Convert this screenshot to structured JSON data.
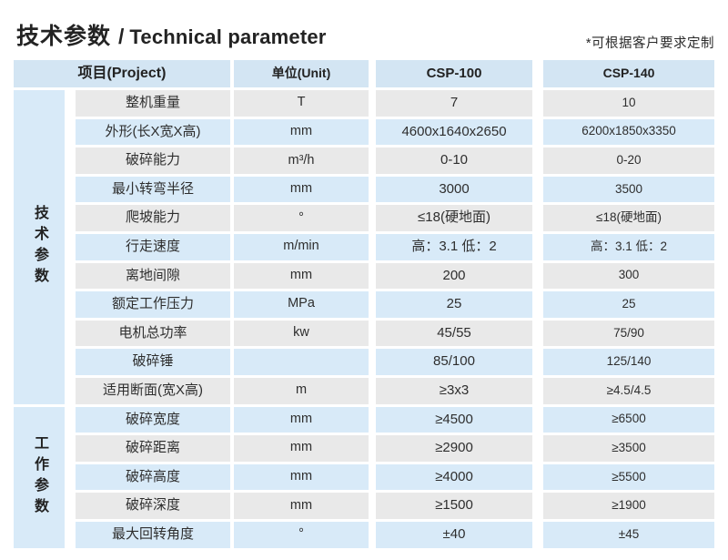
{
  "header": {
    "title_zh": "技术参数",
    "title_sep": "/",
    "title_en": "Technical parameter",
    "note": "*可根据客户要求定制"
  },
  "colors": {
    "header_blue": "#d3e5f3",
    "row_blue": "#d8eaf8",
    "row_gray": "#e9e9e9"
  },
  "table": {
    "headers": {
      "project": "项目(Project)",
      "unit": "单位(Unit)",
      "model1": "CSP-100",
      "model2": "CSP-140"
    },
    "sections": [
      {
        "label": "技术参数"
      },
      {
        "label": "工作参数"
      }
    ],
    "rows": [
      {
        "project": "整机重量",
        "unit": "T",
        "csp100": "7",
        "csp140": "10"
      },
      {
        "project": "外形(长X宽X高)",
        "unit": "mm",
        "csp100": "4600x1640x2650",
        "csp140": "6200x1850x3350"
      },
      {
        "project": "破碎能力",
        "unit": "m³/h",
        "csp100": "0-10",
        "csp140": "0-20"
      },
      {
        "project": "最小转弯半径",
        "unit": "mm",
        "csp100": "3000",
        "csp140": "3500"
      },
      {
        "project": "爬坡能力",
        "unit": "°",
        "csp100": "≤18(硬地面)",
        "csp140": "≤18(硬地面)"
      },
      {
        "project": "行走速度",
        "unit": "m/min",
        "csp100": "高：3.1 低：2",
        "csp140": "高：3.1 低：2"
      },
      {
        "project": "离地间隙",
        "unit": "mm",
        "csp100": "200",
        "csp140": "300"
      },
      {
        "project": "额定工作压力",
        "unit": "MPa",
        "csp100": "25",
        "csp140": "25"
      },
      {
        "project": "电机总功率",
        "unit": "kw",
        "csp100": "45/55",
        "csp140": "75/90"
      },
      {
        "project": "破碎锤",
        "unit": "",
        "csp100": "85/100",
        "csp140": "125/140"
      },
      {
        "project": "适用断面(宽X高)",
        "unit": "m",
        "csp100": "≥3x3",
        "csp140": "≥4.5/4.5"
      },
      {
        "project": "破碎宽度",
        "unit": "mm",
        "csp100": "≥4500",
        "csp140": "≥6500"
      },
      {
        "project": "破碎距离",
        "unit": "mm",
        "csp100": "≥2900",
        "csp140": "≥3500"
      },
      {
        "project": "破碎高度",
        "unit": "mm",
        "csp100": "≥4000",
        "csp140": "≥5500"
      },
      {
        "project": "破碎深度",
        "unit": "mm",
        "csp100": "≥1500",
        "csp140": "≥1900"
      },
      {
        "project": "最大回转角度",
        "unit": "°",
        "csp100": "±40",
        "csp140": "±45"
      }
    ]
  }
}
